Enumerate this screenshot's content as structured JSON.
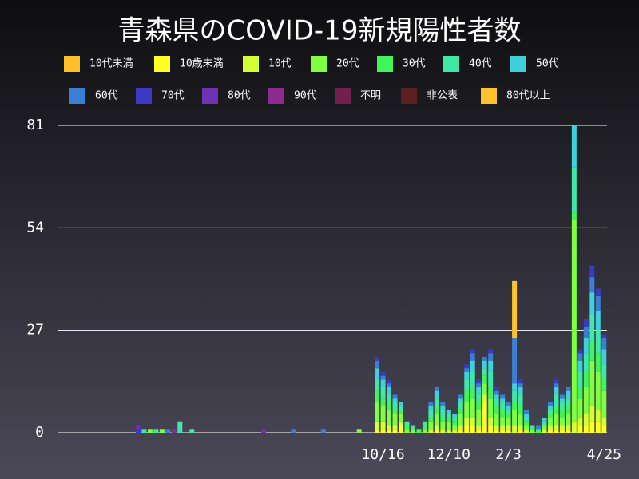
{
  "chart_data": {
    "type": "bar",
    "stacked": true,
    "title": "青森県のCOVID-19新規陽性者数",
    "categories": [
      null,
      null,
      null,
      null,
      null,
      null,
      null,
      null,
      null,
      null,
      null,
      null,
      null,
      null,
      null,
      null,
      null,
      null,
      null,
      null,
      null,
      null,
      null,
      null,
      null,
      null,
      null,
      null,
      null,
      null,
      null,
      null,
      null,
      null,
      null,
      null,
      null,
      null,
      null,
      null,
      null,
      null,
      null,
      null,
      null,
      null,
      null,
      null,
      null,
      null,
      null,
      null,
      null,
      null,
      "10/16",
      null,
      null,
      null,
      null,
      null,
      null,
      null,
      null,
      null,
      null,
      "12/10",
      null,
      null,
      null,
      null,
      null,
      null,
      null,
      null,
      null,
      "2/3",
      null,
      null,
      null,
      null,
      null,
      null,
      null,
      null,
      null,
      null,
      null,
      null,
      null,
      null,
      null,
      "4/25"
    ],
    "ylim": [
      0,
      81
    ],
    "yticks": [
      0,
      27,
      54,
      81
    ],
    "grid": true,
    "series": [
      {
        "name": "10代未満",
        "color": "#ffc02a",
        "values": [
          0,
          0,
          0,
          0,
          0,
          0,
          0,
          0,
          0,
          0,
          0,
          0,
          0,
          0,
          0,
          0,
          0,
          0,
          0,
          0,
          0,
          0,
          0,
          0,
          0,
          0,
          0,
          0,
          0,
          0,
          0,
          0,
          0,
          0,
          0,
          0,
          0,
          0,
          0,
          0,
          0,
          0,
          0,
          0,
          0,
          0,
          0,
          0,
          0,
          0,
          0,
          0,
          0,
          0,
          0,
          0,
          0,
          0,
          0,
          0,
          0,
          0,
          0,
          0,
          0,
          0,
          0,
          0,
          0,
          0,
          0,
          0,
          0,
          0,
          0,
          0,
          0,
          0,
          0,
          0,
          0,
          0,
          0,
          0,
          0,
          0,
          0,
          0,
          0,
          0,
          0,
          0
        ]
      },
      {
        "name": "10歳未満",
        "color": "#ffff26",
        "values": [
          0,
          0,
          0,
          0,
          0,
          0,
          0,
          0,
          0,
          0,
          0,
          0,
          0,
          0,
          0,
          0,
          0,
          0,
          0,
          0,
          0,
          0,
          0,
          0,
          0,
          0,
          0,
          0,
          0,
          0,
          0,
          0,
          0,
          0,
          0,
          0,
          0,
          0,
          0,
          0,
          0,
          0,
          0,
          0,
          0,
          0,
          0,
          0,
          0,
          0,
          0,
          0,
          0,
          1,
          1,
          1,
          1,
          2,
          0,
          0,
          0,
          0,
          0,
          1,
          0,
          0,
          0,
          1,
          2,
          2,
          1,
          8,
          2,
          1,
          1,
          1,
          0,
          1,
          0,
          0,
          0,
          0,
          1,
          1,
          1,
          1,
          0,
          2,
          2,
          3,
          3,
          2
        ]
      },
      {
        "name": "10代",
        "color": "#d4ff33",
        "values": [
          0,
          0,
          0,
          0,
          0,
          0,
          0,
          0,
          0,
          0,
          0,
          0,
          0,
          0,
          0,
          0,
          0,
          0,
          0,
          0,
          0,
          0,
          0,
          0,
          0,
          0,
          0,
          0,
          0,
          0,
          0,
          0,
          0,
          0,
          0,
          0,
          0,
          0,
          0,
          0,
          0,
          0,
          0,
          0,
          0,
          0,
          0,
          0,
          0,
          0,
          0,
          0,
          0,
          2,
          2,
          1,
          1,
          1,
          0,
          0,
          0,
          0,
          1,
          1,
          1,
          1,
          1,
          1,
          2,
          2,
          1,
          2,
          2,
          1,
          1,
          1,
          2,
          1,
          1,
          0,
          0,
          1,
          1,
          1,
          1,
          1,
          3,
          2,
          3,
          4,
          3,
          2
        ]
      },
      {
        "name": "20代",
        "color": "#7fff40",
        "values": [
          0,
          0,
          0,
          0,
          0,
          0,
          0,
          0,
          0,
          0,
          0,
          0,
          0,
          0,
          0,
          1,
          0,
          1,
          0,
          0,
          0,
          0,
          0,
          0,
          0,
          0,
          0,
          0,
          0,
          0,
          0,
          0,
          0,
          0,
          0,
          0,
          0,
          0,
          0,
          0,
          0,
          0,
          0,
          0,
          0,
          0,
          0,
          0,
          0,
          0,
          1,
          0,
          0,
          5,
          4,
          4,
          3,
          2,
          1,
          1,
          0,
          1,
          2,
          3,
          2,
          2,
          1,
          3,
          4,
          5,
          4,
          3,
          5,
          3,
          2,
          2,
          4,
          3,
          1,
          1,
          0,
          1,
          2,
          3,
          2,
          3,
          53,
          5,
          7,
          12,
          10,
          7
        ]
      },
      {
        "name": "30代",
        "color": "#40f55a",
        "values": [
          0,
          0,
          0,
          0,
          0,
          0,
          0,
          0,
          0,
          0,
          0,
          0,
          0,
          0,
          0,
          0,
          0,
          0,
          0,
          0,
          0,
          0,
          0,
          0,
          0,
          0,
          0,
          0,
          0,
          0,
          0,
          0,
          0,
          0,
          0,
          0,
          0,
          0,
          0,
          0,
          0,
          0,
          0,
          0,
          0,
          0,
          0,
          0,
          0,
          0,
          0,
          0,
          0,
          3,
          2,
          2,
          1,
          1,
          1,
          0,
          1,
          1,
          1,
          2,
          1,
          1,
          1,
          1,
          3,
          3,
          2,
          2,
          3,
          2,
          2,
          1,
          2,
          2,
          1,
          0,
          1,
          0,
          1,
          2,
          2,
          2,
          2,
          3,
          4,
          5,
          5,
          3
        ]
      },
      {
        "name": "40代",
        "color": "#40e8a8",
        "values": [
          0,
          0,
          0,
          0,
          0,
          0,
          0,
          0,
          0,
          0,
          0,
          0,
          0,
          0,
          1,
          0,
          1,
          0,
          0,
          0,
          3,
          0,
          1,
          0,
          0,
          0,
          0,
          0,
          0,
          0,
          0,
          0,
          0,
          0,
          0,
          0,
          0,
          0,
          0,
          0,
          0,
          0,
          0,
          0,
          0,
          0,
          0,
          0,
          0,
          0,
          0,
          0,
          0,
          3,
          3,
          2,
          2,
          1,
          1,
          1,
          0,
          1,
          2,
          2,
          2,
          1,
          1,
          2,
          3,
          4,
          2,
          2,
          4,
          2,
          2,
          1,
          3,
          3,
          1,
          1,
          0,
          1,
          1,
          3,
          2,
          2,
          12,
          4,
          5,
          7,
          6,
          4
        ]
      },
      {
        "name": "50代",
        "color": "#3ed0dc",
        "values": [
          0,
          0,
          0,
          0,
          0,
          0,
          0,
          0,
          0,
          0,
          0,
          0,
          0,
          0,
          0,
          0,
          0,
          0,
          0,
          0,
          0,
          0,
          0,
          0,
          0,
          0,
          0,
          0,
          0,
          0,
          0,
          0,
          0,
          0,
          0,
          0,
          0,
          0,
          0,
          0,
          0,
          0,
          0,
          0,
          0,
          0,
          0,
          0,
          0,
          0,
          0,
          0,
          0,
          3,
          2,
          2,
          1,
          1,
          0,
          0,
          0,
          0,
          1,
          2,
          1,
          1,
          1,
          1,
          2,
          3,
          2,
          2,
          3,
          1,
          1,
          1,
          2,
          2,
          1,
          0,
          0,
          1,
          1,
          2,
          1,
          2,
          11,
          3,
          4,
          6,
          5,
          4
        ]
      },
      {
        "name": "60代",
        "color": "#3a7fd5",
        "values": [
          0,
          0,
          0,
          0,
          0,
          0,
          0,
          0,
          0,
          0,
          0,
          0,
          0,
          0,
          0,
          0,
          0,
          0,
          1,
          0,
          0,
          0,
          0,
          0,
          0,
          0,
          0,
          0,
          0,
          0,
          0,
          0,
          0,
          0,
          0,
          0,
          0,
          0,
          0,
          1,
          0,
          0,
          0,
          0,
          1,
          0,
          0,
          0,
          0,
          0,
          0,
          0,
          0,
          2,
          1,
          1,
          1,
          0,
          0,
          0,
          0,
          0,
          1,
          1,
          1,
          0,
          0,
          1,
          1,
          2,
          1,
          1,
          2,
          1,
          1,
          1,
          12,
          1,
          1,
          0,
          1,
          0,
          1,
          1,
          1,
          1,
          0,
          2,
          3,
          4,
          4,
          3
        ]
      },
      {
        "name": "70代",
        "color": "#3a3ac4",
        "values": [
          0,
          0,
          0,
          0,
          0,
          0,
          0,
          0,
          0,
          0,
          0,
          0,
          0,
          1,
          0,
          0,
          0,
          0,
          0,
          0,
          0,
          0,
          0,
          0,
          0,
          0,
          0,
          0,
          0,
          0,
          0,
          0,
          0,
          0,
          0,
          0,
          0,
          0,
          0,
          0,
          0,
          0,
          0,
          0,
          0,
          0,
          0,
          0,
          0,
          0,
          0,
          0,
          0,
          1,
          1,
          1,
          0,
          0,
          0,
          0,
          0,
          0,
          0,
          0,
          0,
          0,
          0,
          0,
          1,
          1,
          1,
          0,
          1,
          1,
          0,
          0,
          0,
          1,
          0,
          0,
          0,
          0,
          0,
          1,
          0,
          0,
          0,
          1,
          2,
          3,
          2,
          1
        ]
      },
      {
        "name": "80代",
        "color": "#6e33b5",
        "values": [
          0,
          0,
          0,
          0,
          0,
          0,
          0,
          0,
          0,
          0,
          0,
          0,
          0,
          1,
          0,
          0,
          0,
          0,
          0,
          0,
          0,
          0,
          0,
          0,
          0,
          0,
          0,
          0,
          0,
          0,
          0,
          0,
          0,
          0,
          1,
          0,
          0,
          0,
          0,
          0,
          0,
          0,
          0,
          0,
          0,
          0,
          0,
          0,
          0,
          0,
          0,
          0,
          0,
          0,
          0,
          0,
          0,
          0,
          0,
          0,
          0,
          0,
          0,
          0,
          0,
          0,
          0,
          0,
          0,
          0,
          0,
          0,
          0,
          0,
          0,
          0,
          0,
          0,
          0,
          0,
          0,
          0,
          0,
          0,
          0,
          0,
          0,
          0,
          0,
          0,
          0,
          0
        ]
      },
      {
        "name": "90代",
        "color": "#8e2a8e",
        "values": [
          0,
          0,
          0,
          0,
          0,
          0,
          0,
          0,
          0,
          0,
          0,
          0,
          0,
          0,
          0,
          0,
          0,
          0,
          0,
          1,
          0,
          0,
          0,
          0,
          0,
          0,
          0,
          0,
          0,
          0,
          0,
          0,
          0,
          0,
          0,
          0,
          0,
          0,
          0,
          0,
          0,
          0,
          0,
          0,
          0,
          0,
          0,
          0,
          0,
          0,
          0,
          0,
          0,
          0,
          0,
          0,
          0,
          0,
          0,
          0,
          0,
          0,
          0,
          0,
          0,
          0,
          0,
          0,
          0,
          0,
          0,
          0,
          0,
          0,
          0,
          0,
          0,
          0,
          0,
          0,
          0,
          0,
          0,
          0,
          0,
          0,
          0,
          0,
          0,
          0,
          0,
          0
        ]
      },
      {
        "name": "不明",
        "color": "#74204e",
        "values": [
          0,
          0,
          0,
          0,
          0,
          0,
          0,
          0,
          0,
          0,
          0,
          0,
          0,
          0,
          0,
          0,
          0,
          0,
          0,
          0,
          0,
          0,
          0,
          0,
          0,
          0,
          0,
          0,
          0,
          0,
          0,
          0,
          0,
          0,
          0,
          0,
          0,
          0,
          0,
          0,
          0,
          0,
          0,
          0,
          0,
          0,
          0,
          0,
          0,
          0,
          0,
          0,
          0,
          0,
          0,
          0,
          0,
          0,
          0,
          0,
          0,
          0,
          0,
          0,
          0,
          0,
          0,
          0,
          0,
          0,
          0,
          0,
          0,
          0,
          0,
          0,
          0,
          0,
          0,
          0,
          0,
          0,
          0,
          0,
          0,
          0,
          0,
          0,
          0,
          0,
          0,
          0
        ]
      },
      {
        "name": "非公表",
        "color": "#5e1f22",
        "values": [
          0,
          0,
          0,
          0,
          0,
          0,
          0,
          0,
          0,
          0,
          0,
          0,
          0,
          0,
          0,
          0,
          0,
          0,
          0,
          0,
          0,
          0,
          0,
          0,
          0,
          0,
          0,
          0,
          0,
          0,
          0,
          0,
          0,
          0,
          0,
          0,
          0,
          0,
          0,
          0,
          0,
          0,
          0,
          0,
          0,
          0,
          0,
          0,
          0,
          0,
          0,
          0,
          0,
          0,
          0,
          0,
          0,
          0,
          0,
          0,
          0,
          0,
          0,
          0,
          0,
          0,
          0,
          0,
          0,
          0,
          0,
          0,
          0,
          0,
          0,
          0,
          0,
          0,
          0,
          0,
          0,
          0,
          0,
          0,
          0,
          0,
          0,
          0,
          0,
          0,
          0,
          0
        ]
      },
      {
        "name": "80代以上",
        "color": "#ffc22c",
        "values": [
          0,
          0,
          0,
          0,
          0,
          0,
          0,
          0,
          0,
          0,
          0,
          0,
          0,
          0,
          0,
          0,
          0,
          0,
          0,
          0,
          0,
          0,
          0,
          0,
          0,
          0,
          0,
          0,
          0,
          0,
          0,
          0,
          0,
          0,
          0,
          0,
          0,
          0,
          0,
          0,
          0,
          0,
          0,
          0,
          0,
          0,
          0,
          0,
          0,
          0,
          0,
          0,
          0,
          0,
          0,
          0,
          0,
          0,
          0,
          0,
          0,
          0,
          0,
          0,
          0,
          0,
          0,
          0,
          0,
          0,
          0,
          0,
          0,
          0,
          0,
          0,
          15,
          0,
          0,
          0,
          0,
          0,
          0,
          0,
          0,
          0,
          0,
          0,
          0,
          0,
          0,
          0
        ]
      }
    ]
  }
}
